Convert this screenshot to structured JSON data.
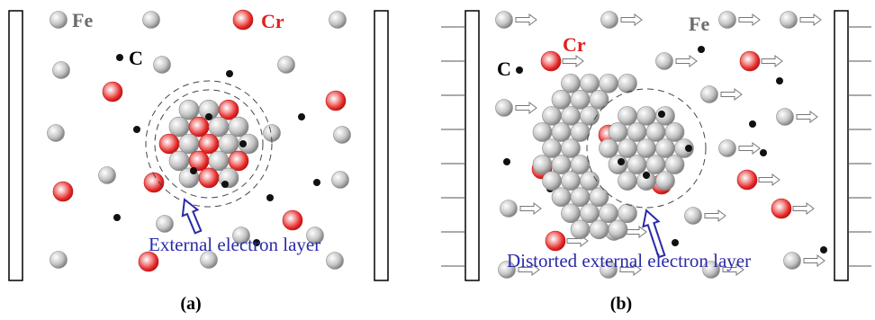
{
  "panel_a": {
    "fe_label": "Fe",
    "cr_label": "Cr",
    "c_label": "C",
    "annotation": "External electron layer",
    "caption": "(a)"
  },
  "panel_b": {
    "fe_label": "Fe",
    "cr_label": "Cr",
    "c_label": "C",
    "annotation": "Distorted external electron layer",
    "caption": "(b)"
  }
}
